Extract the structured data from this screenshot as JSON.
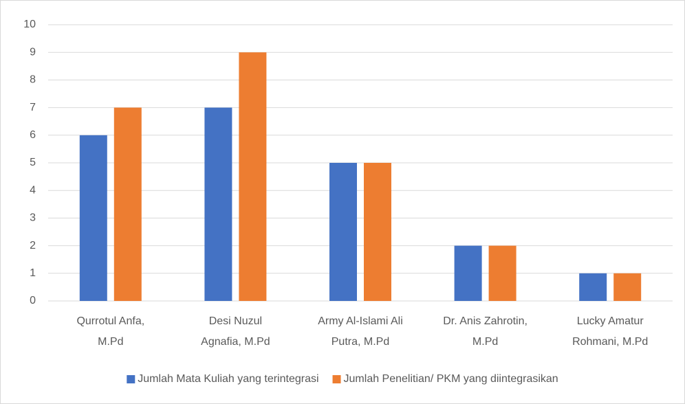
{
  "chart_data": {
    "type": "bar",
    "categories": [
      "Qurrotul Anfa,\nM.Pd",
      "Desi Nuzul\nAgnafia, M.Pd",
      "Army Al-Islami Ali\nPutra, M.Pd",
      "Dr. Anis Zahrotin,\nM.Pd",
      "Lucky Amatur\nRohmani, M.Pd"
    ],
    "series": [
      {
        "name": "Jumlah Mata Kuliah yang terintegrasi",
        "color": "#4472c4",
        "values": [
          6,
          7,
          5,
          2,
          1
        ]
      },
      {
        "name": "Jumlah Penelitian/ PKM yang diintegrasikan",
        "color": "#ed7d31",
        "values": [
          7,
          9,
          5,
          2,
          1
        ]
      }
    ],
    "ylim": [
      0,
      10
    ],
    "yticks": [
      0,
      1,
      2,
      3,
      4,
      5,
      6,
      7,
      8,
      9,
      10
    ],
    "grid": true,
    "legend": "bottom"
  }
}
